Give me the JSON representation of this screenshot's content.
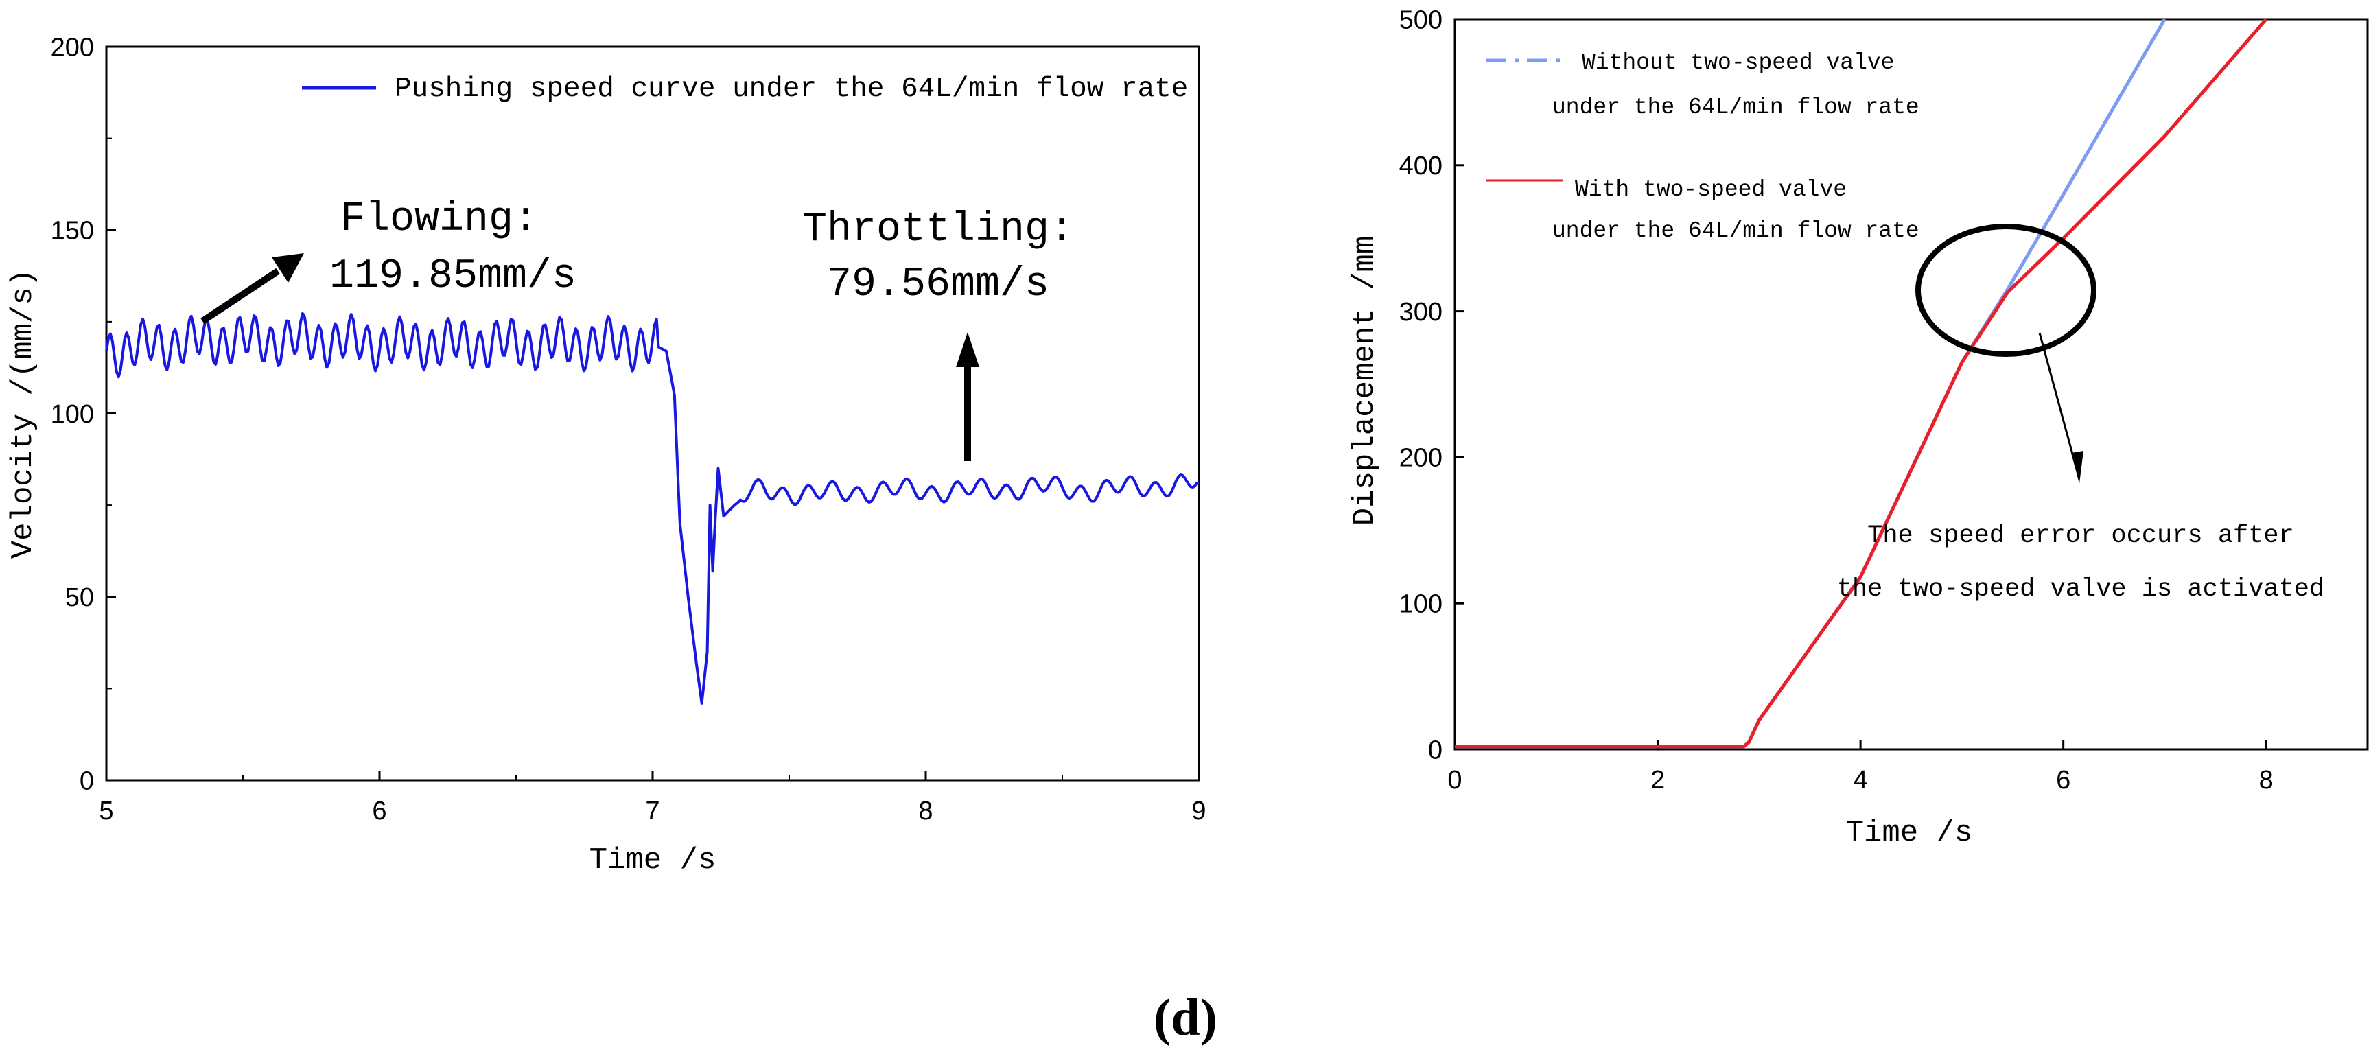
{
  "figure_label": "(d)",
  "chart_data": [
    {
      "type": "line",
      "xlabel": "Time /s",
      "ylabel": "Velocity /(mm/s)",
      "xlim": [
        5,
        9
      ],
      "ylim": [
        0,
        200
      ],
      "xticks": [
        "5",
        "6",
        "7",
        "8",
        "9"
      ],
      "yticks": [
        "0",
        "50",
        "100",
        "150",
        "200"
      ],
      "grid": false,
      "legend_placement": "top-right",
      "series": [
        {
          "name": "Pushing speed curve under the 64L/min flow rate",
          "color": "#1818e0",
          "x": [
            5.0,
            5.2,
            5.4,
            5.6,
            5.8,
            6.0,
            6.2,
            6.4,
            6.6,
            6.8,
            7.0,
            7.05,
            7.08,
            7.1,
            7.13,
            7.16,
            7.18,
            7.2,
            7.21,
            7.22,
            7.23,
            7.24,
            7.26,
            7.3,
            7.35,
            7.4,
            7.6,
            7.8,
            8.0,
            8.2,
            8.4,
            8.6,
            8.8,
            9.0
          ],
          "y": [
            117,
            119,
            120,
            120,
            120,
            119,
            119,
            119,
            119,
            119,
            119,
            117,
            105,
            70,
            50,
            32,
            21,
            35,
            75,
            57,
            72,
            85,
            72,
            75,
            78,
            79,
            78,
            79,
            79,
            79,
            80,
            79,
            80,
            81
          ]
        }
      ],
      "annotations": [
        {
          "line1": "Flowing:",
          "line2": "119.85mm/s"
        },
        {
          "line1": "Throttling:",
          "line2": "79.56mm/s"
        }
      ]
    },
    {
      "type": "line",
      "xlabel": "Time /s",
      "ylabel": "Displacement /mm",
      "xlim": [
        0,
        9
      ],
      "ylim": [
        0,
        500
      ],
      "xticks": [
        "0",
        "2",
        "4",
        "6",
        "8"
      ],
      "yticks": [
        "0",
        "100",
        "200",
        "300",
        "400",
        "500"
      ],
      "grid": false,
      "legend_placement": "top-left",
      "series": [
        {
          "name": "Without two-speed valve under the 64L/min flow rate",
          "legend_line1": "Without two-speed valve",
          "legend_line2": "under the 64L/min flow rate",
          "color": "#7f9cf5",
          "x": [
            0,
            2.85,
            2.9,
            3.0,
            4.0,
            5.0,
            5.45,
            6.0,
            7.0
          ],
          "y": [
            2,
            2,
            5,
            20,
            118,
            265,
            315,
            380,
            500
          ]
        },
        {
          "name": "With two-speed valve under the 64L/min flow rate",
          "legend_line1": "With two-speed valve",
          "legend_line2": "under the 64L/min flow rate",
          "color": "#e8202a",
          "x": [
            0,
            2.85,
            2.9,
            3.0,
            4.0,
            5.0,
            5.45,
            6.0,
            7.0,
            8.0
          ],
          "y": [
            2,
            2,
            5,
            20,
            118,
            265,
            313,
            350,
            420,
            500
          ]
        }
      ],
      "annotations": [
        {
          "line1": "The speed error occurs after",
          "line2": "the two-speed valve is activated"
        }
      ]
    }
  ]
}
